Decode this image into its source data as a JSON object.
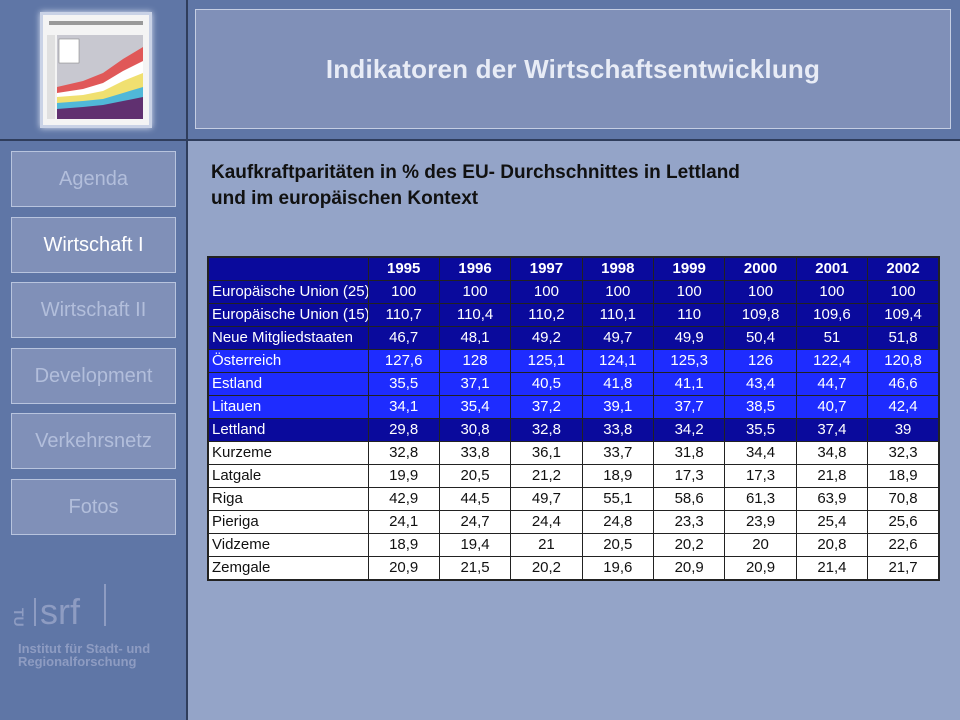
{
  "title": "Indikatoren der Wirtschaftsentwicklung",
  "nav": [
    {
      "label": "Agenda",
      "active": false
    },
    {
      "label": "Wirtschaft I",
      "active": true
    },
    {
      "label": "Wirtschaft II",
      "active": false
    },
    {
      "label": "Development",
      "active": false
    },
    {
      "label": "Verkehrsnetz",
      "active": false
    },
    {
      "label": "Fotos",
      "active": false
    }
  ],
  "subtitle_line1": "Kaufkraftparitäten in % des EU- Durchschnittes in Lettland",
  "subtitle_line2": "und im europäischen Kontext",
  "table": {
    "years": [
      "1995",
      "1996",
      "1997",
      "1998",
      "1999",
      "2000",
      "2001",
      "2002"
    ],
    "rows": [
      {
        "group": "eu",
        "name": "Europäische Union (25)",
        "values": [
          "100",
          "100",
          "100",
          "100",
          "100",
          "100",
          "100",
          "100"
        ]
      },
      {
        "group": "eu",
        "name": "Europäische Union (15)",
        "values": [
          "110,7",
          "110,4",
          "110,2",
          "110,1",
          "110",
          "109,8",
          "109,6",
          "109,4"
        ]
      },
      {
        "group": "eu",
        "name": "Neue Mitgliedstaaten",
        "values": [
          "46,7",
          "48,1",
          "49,2",
          "49,7",
          "49,9",
          "50,4",
          "51",
          "51,8"
        ]
      },
      {
        "group": "cty",
        "name": "Österreich",
        "values": [
          "127,6",
          "128",
          "125,1",
          "124,1",
          "125,3",
          "126",
          "122,4",
          "120,8"
        ]
      },
      {
        "group": "cty",
        "name": "Estland",
        "values": [
          "35,5",
          "37,1",
          "40,5",
          "41,8",
          "41,1",
          "43,4",
          "44,7",
          "46,6"
        ]
      },
      {
        "group": "cty",
        "name": "Litauen",
        "values": [
          "34,1",
          "35,4",
          "37,2",
          "39,1",
          "37,7",
          "38,5",
          "40,7",
          "42,4"
        ]
      },
      {
        "group": "lv",
        "name": "Lettland",
        "values": [
          "29,8",
          "30,8",
          "32,8",
          "33,8",
          "34,2",
          "35,5",
          "37,4",
          "39"
        ]
      },
      {
        "group": "reg",
        "name": "Kurzeme",
        "values": [
          "32,8",
          "33,8",
          "36,1",
          "33,7",
          "31,8",
          "34,4",
          "34,8",
          "32,3"
        ]
      },
      {
        "group": "reg",
        "name": "Latgale",
        "values": [
          "19,9",
          "20,5",
          "21,2",
          "18,9",
          "17,3",
          "17,3",
          "21,8",
          "18,9"
        ]
      },
      {
        "group": "reg",
        "name": "Riga",
        "values": [
          "42,9",
          "44,5",
          "49,7",
          "55,1",
          "58,6",
          "61,3",
          "63,9",
          "70,8"
        ]
      },
      {
        "group": "reg",
        "name": "Pieriga",
        "values": [
          "24,1",
          "24,7",
          "24,4",
          "24,8",
          "23,3",
          "23,9",
          "25,4",
          "25,6"
        ]
      },
      {
        "group": "reg",
        "name": "Vidzeme",
        "values": [
          "18,9",
          "19,4",
          "21",
          "20,5",
          "20,2",
          "20",
          "20,8",
          "22,6"
        ]
      },
      {
        "group": "reg",
        "name": "Zemgale",
        "values": [
          "20,9",
          "21,5",
          "20,2",
          "19,6",
          "20,9",
          "20,9",
          "21,4",
          "21,7"
        ]
      }
    ]
  },
  "logo": {
    "mark": "srf",
    "small": "TU",
    "line1": "Institut für Stadt- und",
    "line2": "Regionalforschung"
  },
  "colors": {
    "eu_row": "#0a0a9c",
    "country_row": "#1e2cff",
    "region_row": "#ffffff"
  }
}
